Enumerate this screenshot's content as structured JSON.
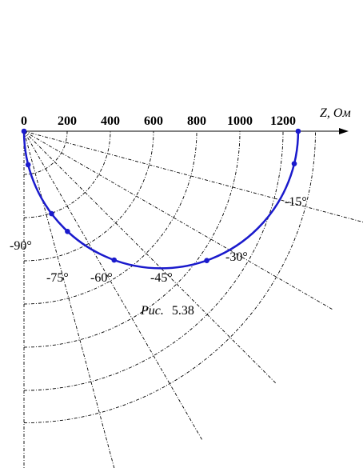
{
  "axis": {
    "ticks": [
      "0",
      "200",
      "400",
      "600",
      "800",
      "1000",
      "1200"
    ],
    "label": "Z, Ом"
  },
  "angles": [
    {
      "label": "-15°",
      "deg": -15
    },
    {
      "label": "-30°",
      "deg": -30
    },
    {
      "label": "-45°",
      "deg": -45
    },
    {
      "label": "-60°",
      "deg": -60
    },
    {
      "label": "-75°",
      "deg": -75
    },
    {
      "label": "-90°",
      "deg": -90
    }
  ],
  "caption": {
    "prefix": "Рис.",
    "number": "5.38"
  },
  "colors": {
    "locus": "#1a1acc",
    "grid": "#000000"
  },
  "chart_data": {
    "type": "line",
    "xlim": [
      0,
      1400
    ],
    "circle_diameter": 1270,
    "points": [
      {
        "x": 0,
        "y": 0
      },
      {
        "x": 20,
        "y": -155
      },
      {
        "x": 130,
        "y": -380
      },
      {
        "x": 210,
        "y": -455
      },
      {
        "x": 420,
        "y": -590
      },
      {
        "x": 840,
        "y": -580
      },
      {
        "x": 1250,
        "y": -150
      },
      {
        "x": 1270,
        "y": 0
      }
    ]
  }
}
